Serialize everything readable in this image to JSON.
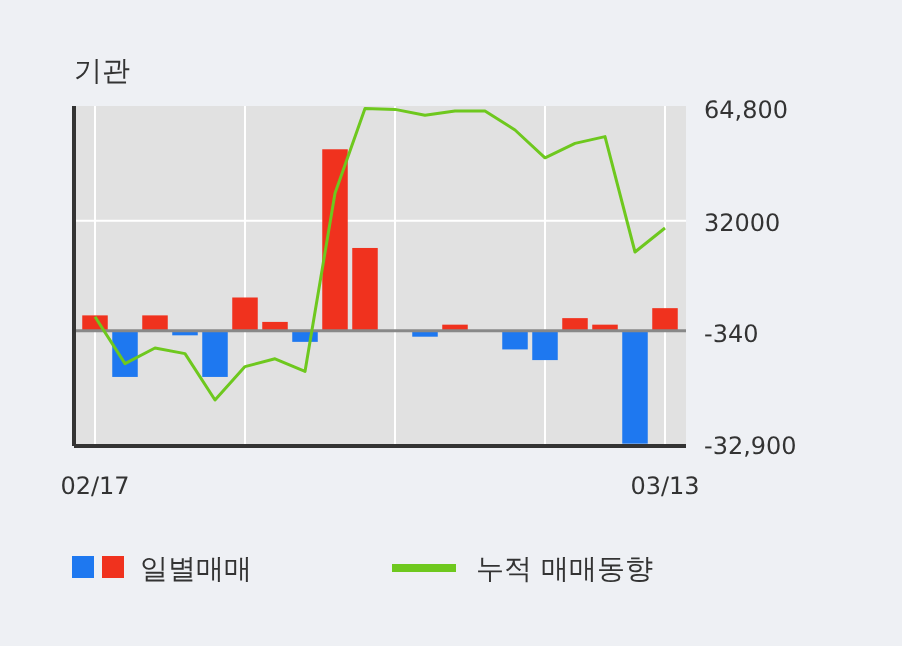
{
  "chart_data": {
    "type": "bar",
    "title": "기관",
    "categories": [
      "02/17",
      null,
      null,
      null,
      null,
      null,
      null,
      null,
      null,
      null,
      null,
      null,
      null,
      null,
      null,
      null,
      null,
      null,
      null,
      "03/13"
    ],
    "series": [
      {
        "name": "일별매매",
        "values": [
          4500,
          -13400,
          4500,
          -1300,
          -13400,
          9700,
          2600,
          -3200,
          52800,
          24100,
          0,
          -1700,
          1800,
          0,
          -5400,
          -8500,
          3700,
          1800,
          -32800,
          6600
        ],
        "colors": [
          "#f0321e",
          "#1e78f0",
          "#f0321e",
          "#1e78f0",
          "#1e78f0",
          "#f0321e",
          "#f0321e",
          "#1e78f0",
          "#f0321e",
          "#f0321e",
          "#f0321e",
          "#1e78f0",
          "#f0321e",
          "#f0321e",
          "#1e78f0",
          "#1e78f0",
          "#f0321e",
          "#f0321e",
          "#1e78f0",
          "#f0321e"
        ]
      },
      {
        "name": "누적 매매동향",
        "type": "line",
        "color": "#6ec81e",
        "values": [
          4100,
          -9500,
          -5000,
          -6600,
          -20100,
          -10400,
          -8100,
          -11800,
          40000,
          64700,
          64400,
          62700,
          63900,
          63900,
          58400,
          50300,
          54500,
          56500,
          22900,
          29900
        ]
      }
    ],
    "ylim": [
      -32900,
      64800
    ],
    "yticks": [
      {
        "value": 64800,
        "label": "64,800"
      },
      32000,
      -340,
      {
        "value": -32900,
        "label": "-32,900"
      }
    ],
    "grid": true,
    "legend": "bottom"
  }
}
